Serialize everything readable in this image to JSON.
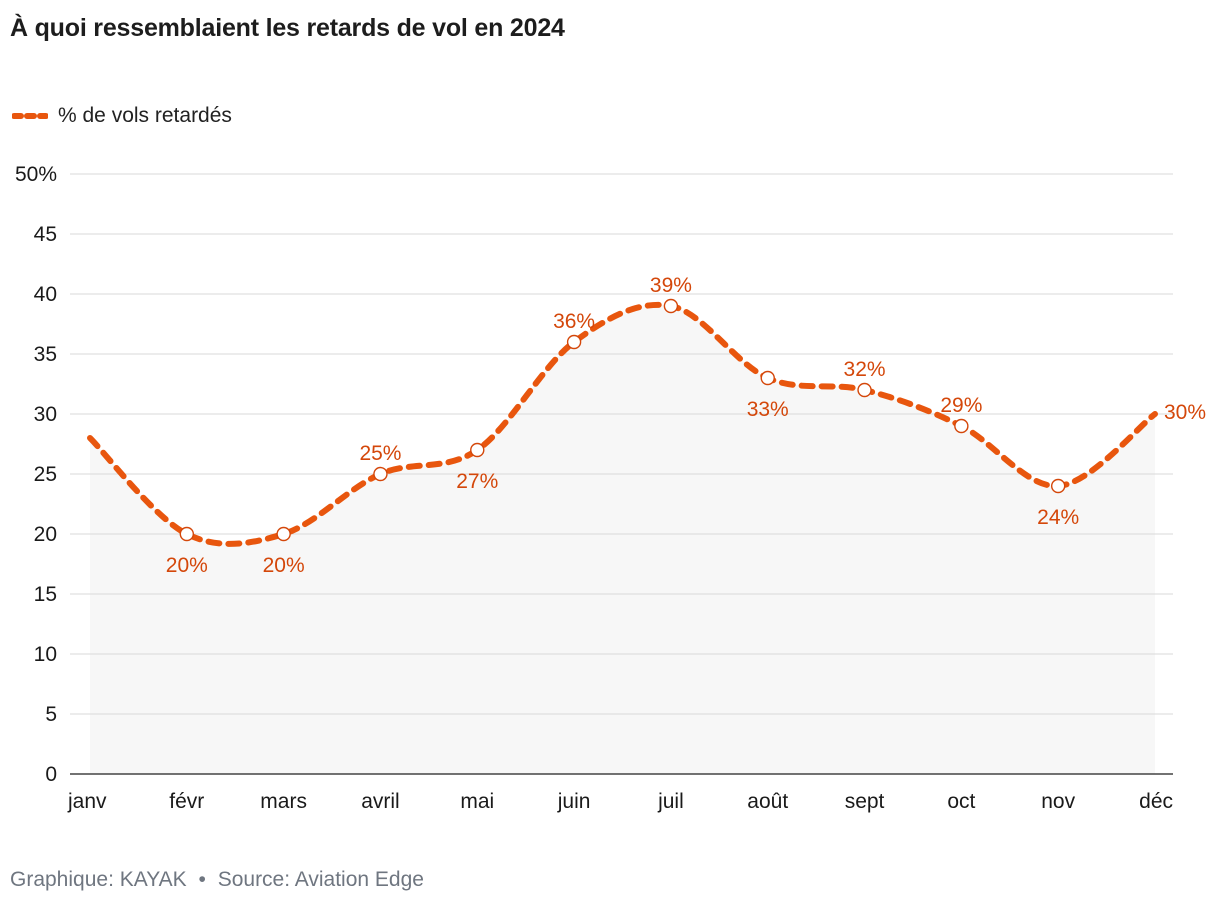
{
  "title": "À quoi ressemblaient les retards de vol en 2024",
  "footer": {
    "credit": "Graphique: KAYAK",
    "separator": "•",
    "source": "Source: Aviation Edge"
  },
  "colors": {
    "series": "#e8560e",
    "label": "#d4470a",
    "grid": "#d9d9d9",
    "area": "#f7f7f7",
    "axis": "#444444"
  },
  "chart_data": {
    "type": "line",
    "title": "À quoi ressemblaient les retards de vol en 2024",
    "xlabel": "",
    "ylabel": "",
    "categories": [
      "janv",
      "févr",
      "mars",
      "avril",
      "mai",
      "juin",
      "juil",
      "août",
      "sept",
      "oct",
      "nov",
      "déc"
    ],
    "series": [
      {
        "name": "% de vols retardés",
        "values": [
          28,
          20,
          20,
          25,
          27,
          36,
          39,
          33,
          32,
          29,
          24,
          30
        ],
        "labels": [
          "",
          "20%",
          "20%",
          "25%",
          "27%",
          "36%",
          "39%",
          "33%",
          "32%",
          "29%",
          "24%",
          "30%"
        ],
        "label_position": [
          "",
          "below",
          "below",
          "above",
          "below",
          "above",
          "above",
          "below",
          "above",
          "above",
          "below",
          "right"
        ],
        "markers": [
          false,
          true,
          true,
          true,
          true,
          true,
          true,
          true,
          true,
          true,
          true,
          false
        ],
        "line_style": "dashed"
      }
    ],
    "ylim": [
      0,
      50
    ],
    "yticks": [
      0,
      5,
      10,
      15,
      20,
      25,
      30,
      35,
      40,
      45,
      50
    ],
    "ytick_labels": [
      "0",
      "5",
      "10",
      "15",
      "20",
      "25",
      "30",
      "35",
      "40",
      "45",
      "50%"
    ],
    "grid": true,
    "legend_position": "top-left"
  }
}
